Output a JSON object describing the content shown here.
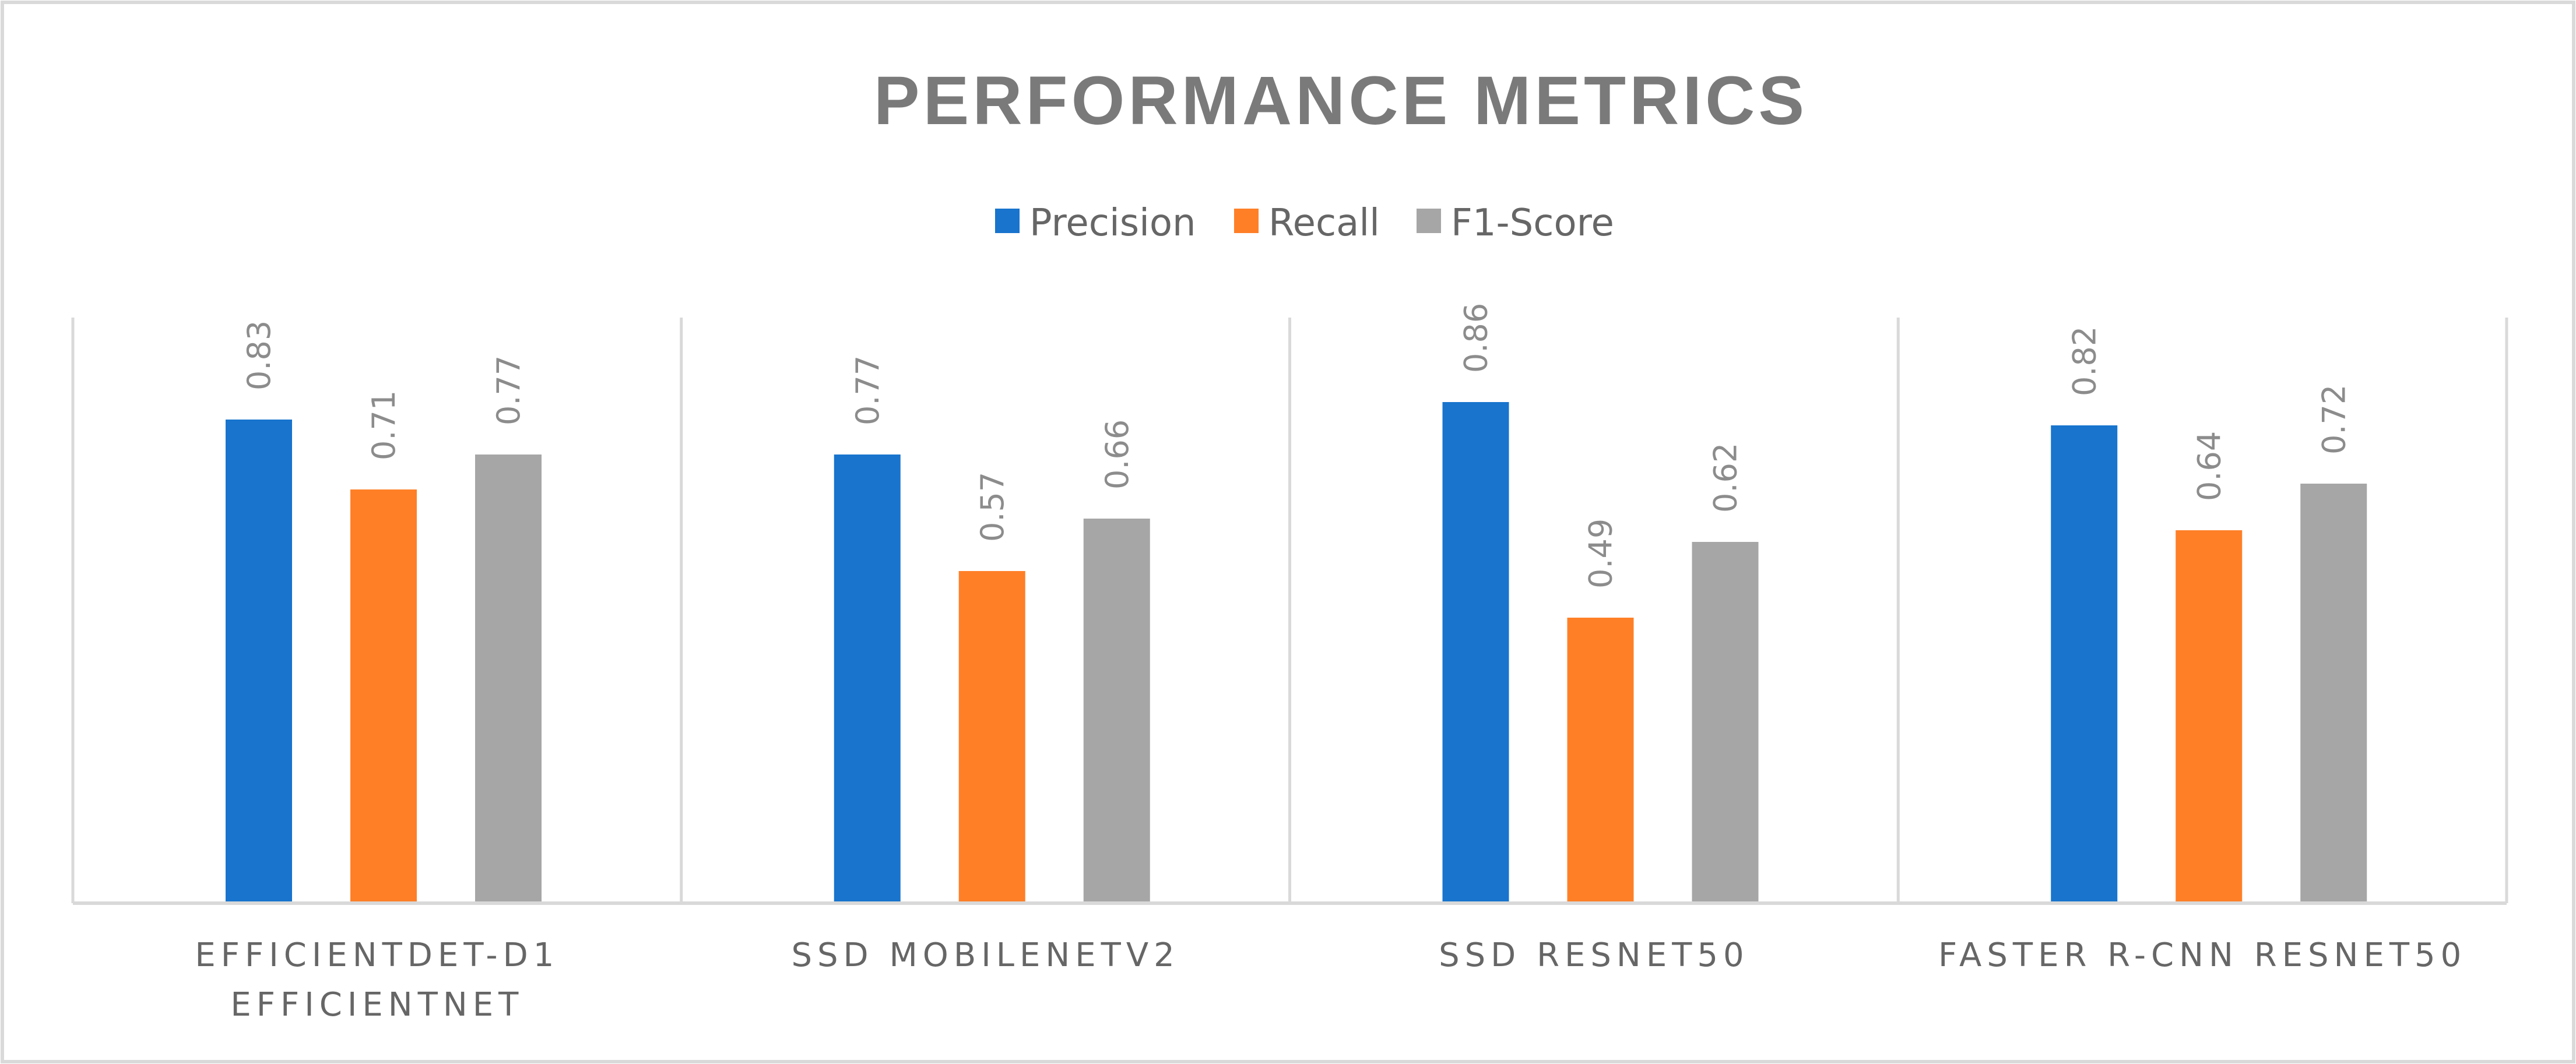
{
  "colors": {
    "Precision": "#1874CD",
    "Recall": "#FF7F27",
    "F1-Score": "#A6A6A6",
    "title": "#7A7A7A",
    "axis": "#D9D9D9",
    "frame": "#D9D9D9"
  },
  "chart_data": {
    "type": "bar",
    "title": "PERFORMANCE METRICS",
    "xlabel": "",
    "ylabel": "",
    "ylim": [
      0,
      1
    ],
    "grid": false,
    "legend_position": "top-center",
    "categories": [
      [
        "EFFICIENTDET-D1",
        "EFFICIENTNET"
      ],
      [
        "SSD MOBILENETV2"
      ],
      [
        "SSD RESNET50"
      ],
      [
        "FASTER R-CNN RESNET50"
      ]
    ],
    "series": [
      {
        "name": "Precision",
        "values": [
          0.83,
          0.77,
          0.86,
          0.82
        ],
        "labels": [
          "0.83",
          "0.77",
          "0.86",
          "0.82"
        ]
      },
      {
        "name": "Recall",
        "values": [
          0.71,
          0.57,
          0.49,
          0.64
        ],
        "labels": [
          "0.71",
          "0.57",
          "0.49",
          "0.64"
        ]
      },
      {
        "name": "F1-Score",
        "values": [
          0.77,
          0.66,
          0.62,
          0.72
        ],
        "labels": [
          "0.77",
          "0.66",
          "0.62",
          "0.72"
        ]
      }
    ]
  }
}
